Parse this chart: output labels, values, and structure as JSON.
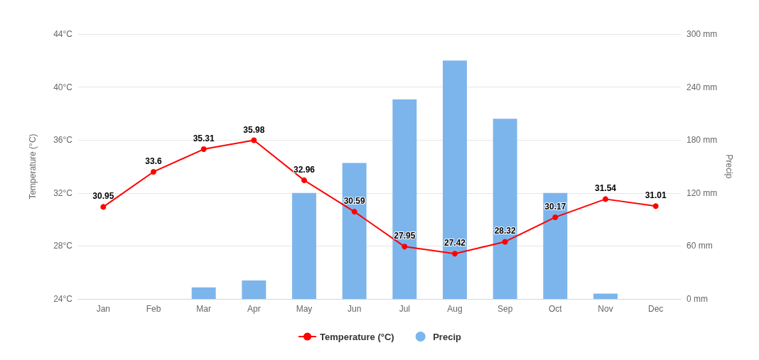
{
  "chart_data": {
    "type": "line",
    "categories": [
      "Jan",
      "Feb",
      "Mar",
      "Apr",
      "May",
      "Jun",
      "Jul",
      "Aug",
      "Sep",
      "Oct",
      "Nov",
      "Dec"
    ],
    "ylabel": "Temperature (°C)",
    "y2label": "Precip",
    "ylim": [
      24,
      44
    ],
    "yticks": [
      {
        "value": 24,
        "label": "24°C"
      },
      {
        "value": 28,
        "label": "28°C"
      },
      {
        "value": 32,
        "label": "32°C"
      },
      {
        "value": 36,
        "label": "36°C"
      },
      {
        "value": 40,
        "label": "40°C"
      },
      {
        "value": 44,
        "label": "44°C"
      }
    ],
    "y2lim": [
      0,
      300
    ],
    "y2ticks": [
      {
        "value": 0,
        "label": "0 mm"
      },
      {
        "value": 60,
        "label": "60 mm"
      },
      {
        "value": 120,
        "label": "120 mm"
      },
      {
        "value": 180,
        "label": "180 mm"
      },
      {
        "value": 240,
        "label": "240 mm"
      },
      {
        "value": 300,
        "label": "300 mm"
      }
    ],
    "grid": "y",
    "legend": "bottom",
    "marker": "circle",
    "series": [
      {
        "name": "Temperature (°C)",
        "color": "#ff0000",
        "values": [
          30.95,
          33.6,
          35.31,
          35.98,
          32.96,
          30.59,
          27.95,
          27.42,
          28.32,
          30.17,
          31.54,
          31.01
        ],
        "value_labels": [
          "30.95",
          "33.6",
          "35.31",
          "35.98",
          "32.96",
          "30.59",
          "27.95",
          "27.42",
          "28.32",
          "30.17",
          "31.54",
          "31.01"
        ]
      },
      {
        "name": "Precip",
        "type": "bar",
        "axis": "y2",
        "color": "#7cb5ec",
        "values": [
          0,
          0,
          13,
          21,
          120,
          154,
          226,
          270,
          204,
          120,
          6,
          0
        ]
      }
    ]
  }
}
